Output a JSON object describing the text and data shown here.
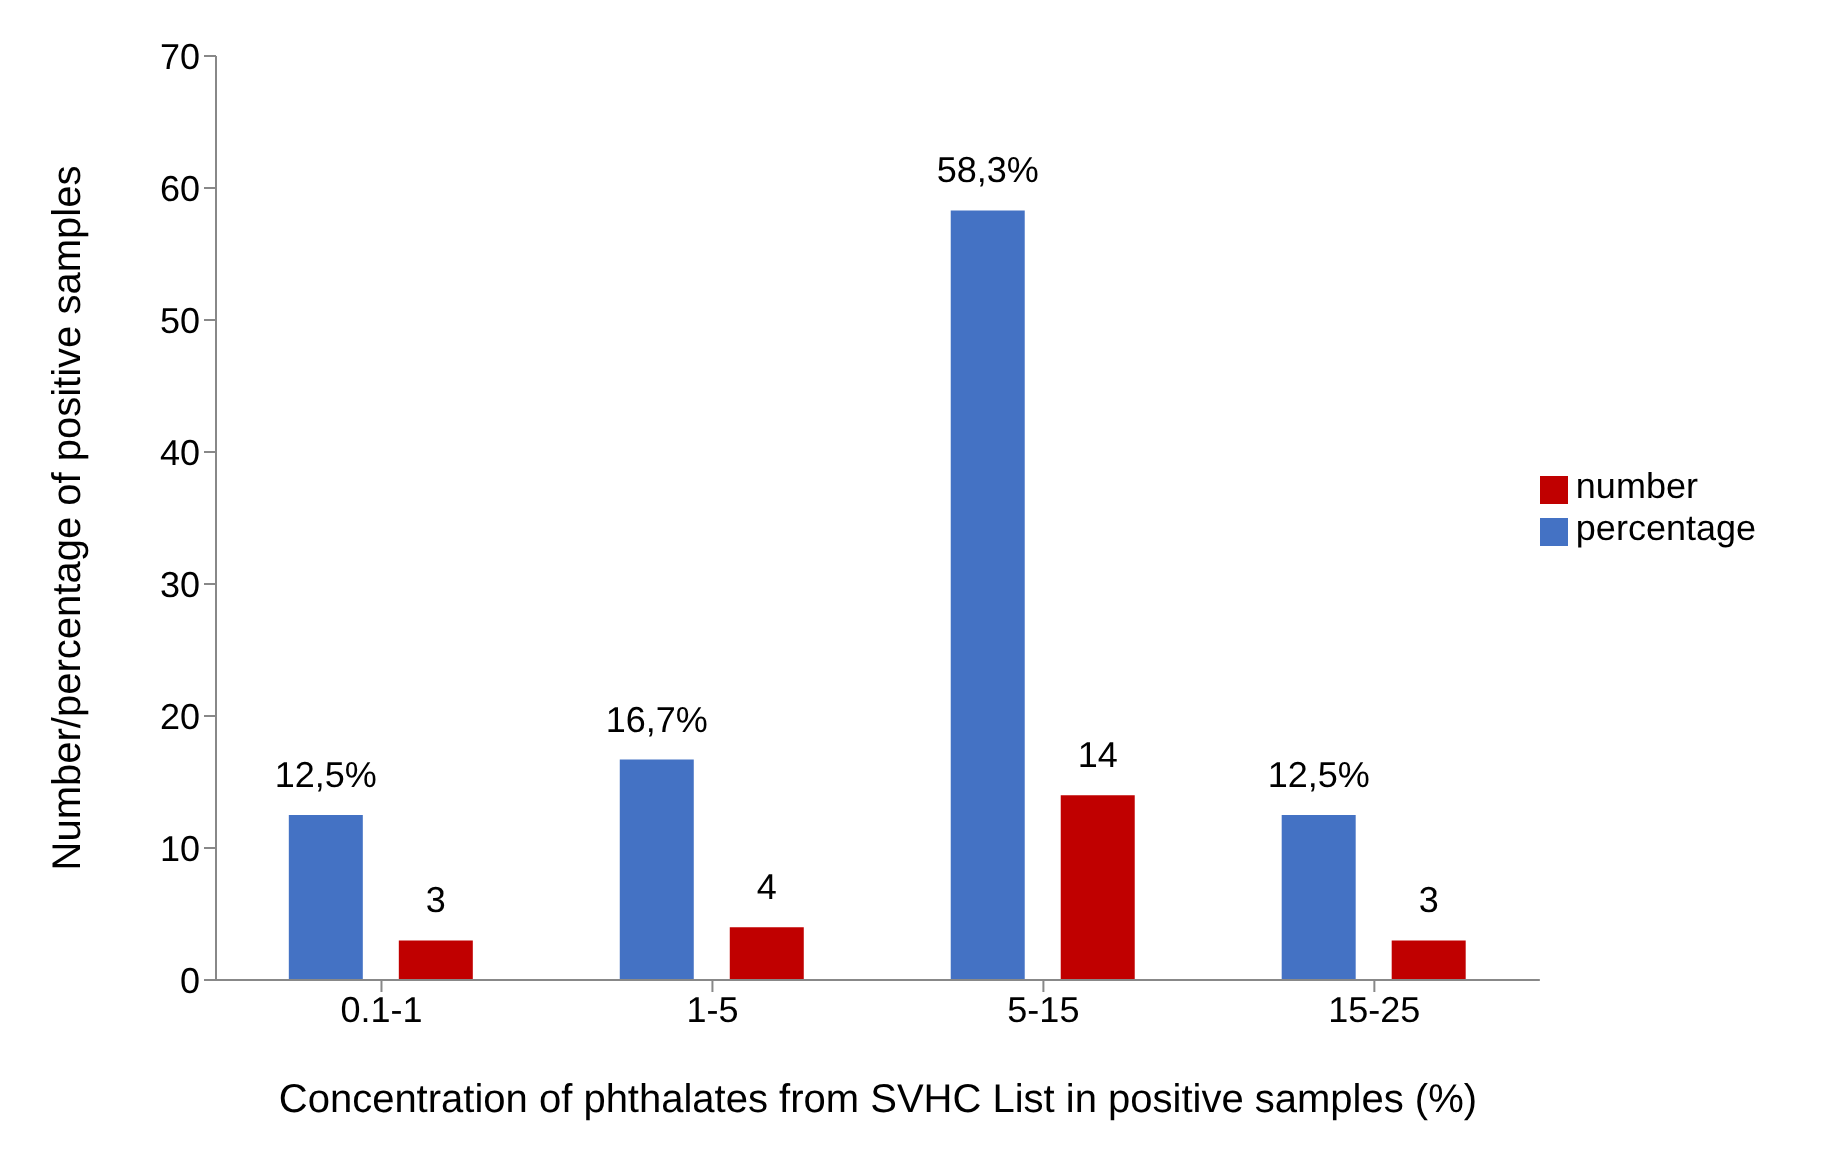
{
  "chart_data": {
    "type": "bar",
    "xlabel": "Concentration of phthalates from SVHC List in positive samples (%)",
    "ylabel": "Number/percentage of positive samples",
    "categories": [
      "0.1-1",
      "1-5",
      "5-15",
      "15-25"
    ],
    "series": [
      {
        "name": "percentage",
        "color": "#4472c4",
        "values": [
          12.5,
          16.7,
          58.3,
          12.5
        ],
        "value_labels": [
          "12,5%",
          "16,7%",
          "58,3%",
          "12,5%"
        ]
      },
      {
        "name": "number",
        "color": "#c00000",
        "values": [
          3,
          4,
          14,
          3
        ],
        "value_labels": [
          "3",
          "4",
          "14",
          "3"
        ]
      }
    ],
    "ylim": [
      0,
      70
    ],
    "yticks": [
      0,
      10,
      20,
      30,
      40,
      50,
      60,
      70
    ],
    "grid": false,
    "legend": "right"
  }
}
